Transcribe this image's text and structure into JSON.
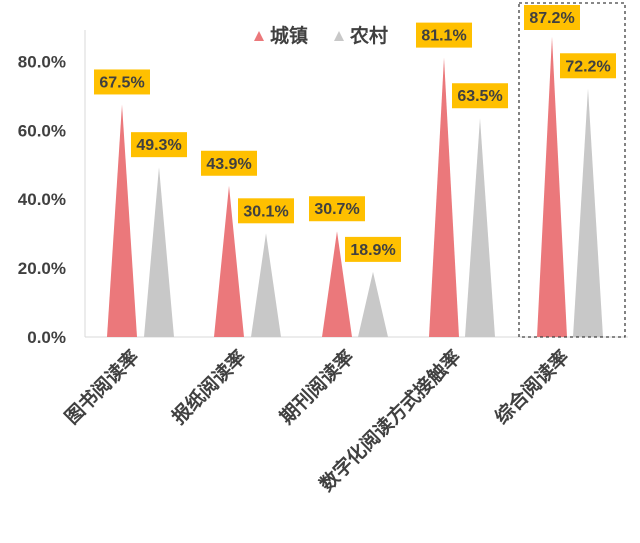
{
  "chart_data": {
    "type": "bar",
    "categories": [
      "图书阅读率",
      "报纸阅读率",
      "期刊阅读率",
      "数字化阅读方式接触率",
      "综合阅读率"
    ],
    "series": [
      {
        "name": "城镇",
        "values": [
          67.5,
          43.9,
          30.7,
          81.1,
          87.2
        ],
        "labels": [
          "67.5%",
          "43.9%",
          "30.7%",
          "81.1%",
          "87.2%"
        ]
      },
      {
        "name": "农村",
        "values": [
          49.3,
          30.1,
          18.9,
          63.5,
          72.2
        ],
        "labels": [
          "49.3%",
          "30.1%",
          "18.9%",
          "63.5%",
          "72.2%"
        ]
      }
    ],
    "yticks": [
      "0.0%",
      "20.0%",
      "40.0%",
      "60.0%",
      "80.0%"
    ],
    "ylim": [
      0,
      90
    ],
    "grid": false,
    "legend": "top",
    "highlighted_category": "综合阅读率",
    "colors": {
      "城镇": "#EB787B",
      "农村": "#C8C8C8",
      "label_bg": "#FFC000",
      "text": "#404040"
    }
  }
}
